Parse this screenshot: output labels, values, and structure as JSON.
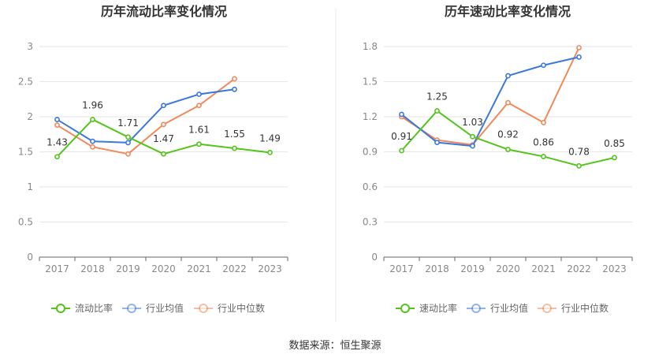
{
  "source_label": "数据来源：恒生聚源",
  "colors": {
    "main": "#52c41a",
    "industry_avg": "#3a78e0",
    "industry_median": "#f2895a",
    "grid": "#e6e6e6",
    "axis": "#666666",
    "tick_text": "#888888",
    "label_text": "#333333",
    "title_text": "#333333",
    "legend_text": "#666666"
  },
  "chart_data": [
    {
      "type": "line",
      "title": "历年流动比率变化情况",
      "categories": [
        "2017",
        "2018",
        "2019",
        "2020",
        "2021",
        "2022",
        "2023"
      ],
      "ylim": [
        0,
        3
      ],
      "yticks": [
        "0",
        "0.5",
        "1",
        "1.5",
        "2",
        "2.5",
        "3"
      ],
      "grid": true,
      "legend_position": "bottom",
      "series": [
        {
          "name": "流动比率",
          "role": "main",
          "values": [
            1.43,
            1.96,
            1.71,
            1.47,
            1.61,
            1.55,
            1.49
          ],
          "labels": [
            "1.43",
            "1.96",
            "1.71",
            "1.47",
            "1.61",
            "1.55",
            "1.49"
          ]
        },
        {
          "name": "行业均值",
          "role": "industry_avg",
          "values": [
            1.96,
            1.65,
            1.63,
            2.16,
            2.32,
            2.39,
            null
          ]
        },
        {
          "name": "行业中位数",
          "role": "industry_median",
          "values": [
            1.88,
            1.57,
            1.47,
            1.89,
            2.16,
            2.54,
            null
          ]
        }
      ]
    },
    {
      "type": "line",
      "title": "历年速动比率变化情况",
      "categories": [
        "2017",
        "2018",
        "2019",
        "2020",
        "2021",
        "2022",
        "2023"
      ],
      "ylim": [
        0,
        1.8
      ],
      "yticks": [
        "0",
        "0.3",
        "0.6",
        "0.9",
        "1.2",
        "1.5",
        "1.8"
      ],
      "grid": true,
      "legend_position": "bottom",
      "series": [
        {
          "name": "速动比率",
          "role": "main",
          "values": [
            0.91,
            1.25,
            1.03,
            0.92,
            0.86,
            0.78,
            0.85
          ],
          "labels": [
            "0.91",
            "1.25",
            "1.03",
            "0.92",
            "0.86",
            "0.78",
            "0.85"
          ]
        },
        {
          "name": "行业均值",
          "role": "industry_avg",
          "values": [
            1.22,
            0.98,
            0.95,
            1.55,
            1.64,
            1.71,
            null
          ]
        },
        {
          "name": "行业中位数",
          "role": "industry_median",
          "values": [
            1.2,
            1.0,
            0.96,
            1.32,
            1.15,
            1.79,
            null
          ]
        }
      ]
    }
  ]
}
